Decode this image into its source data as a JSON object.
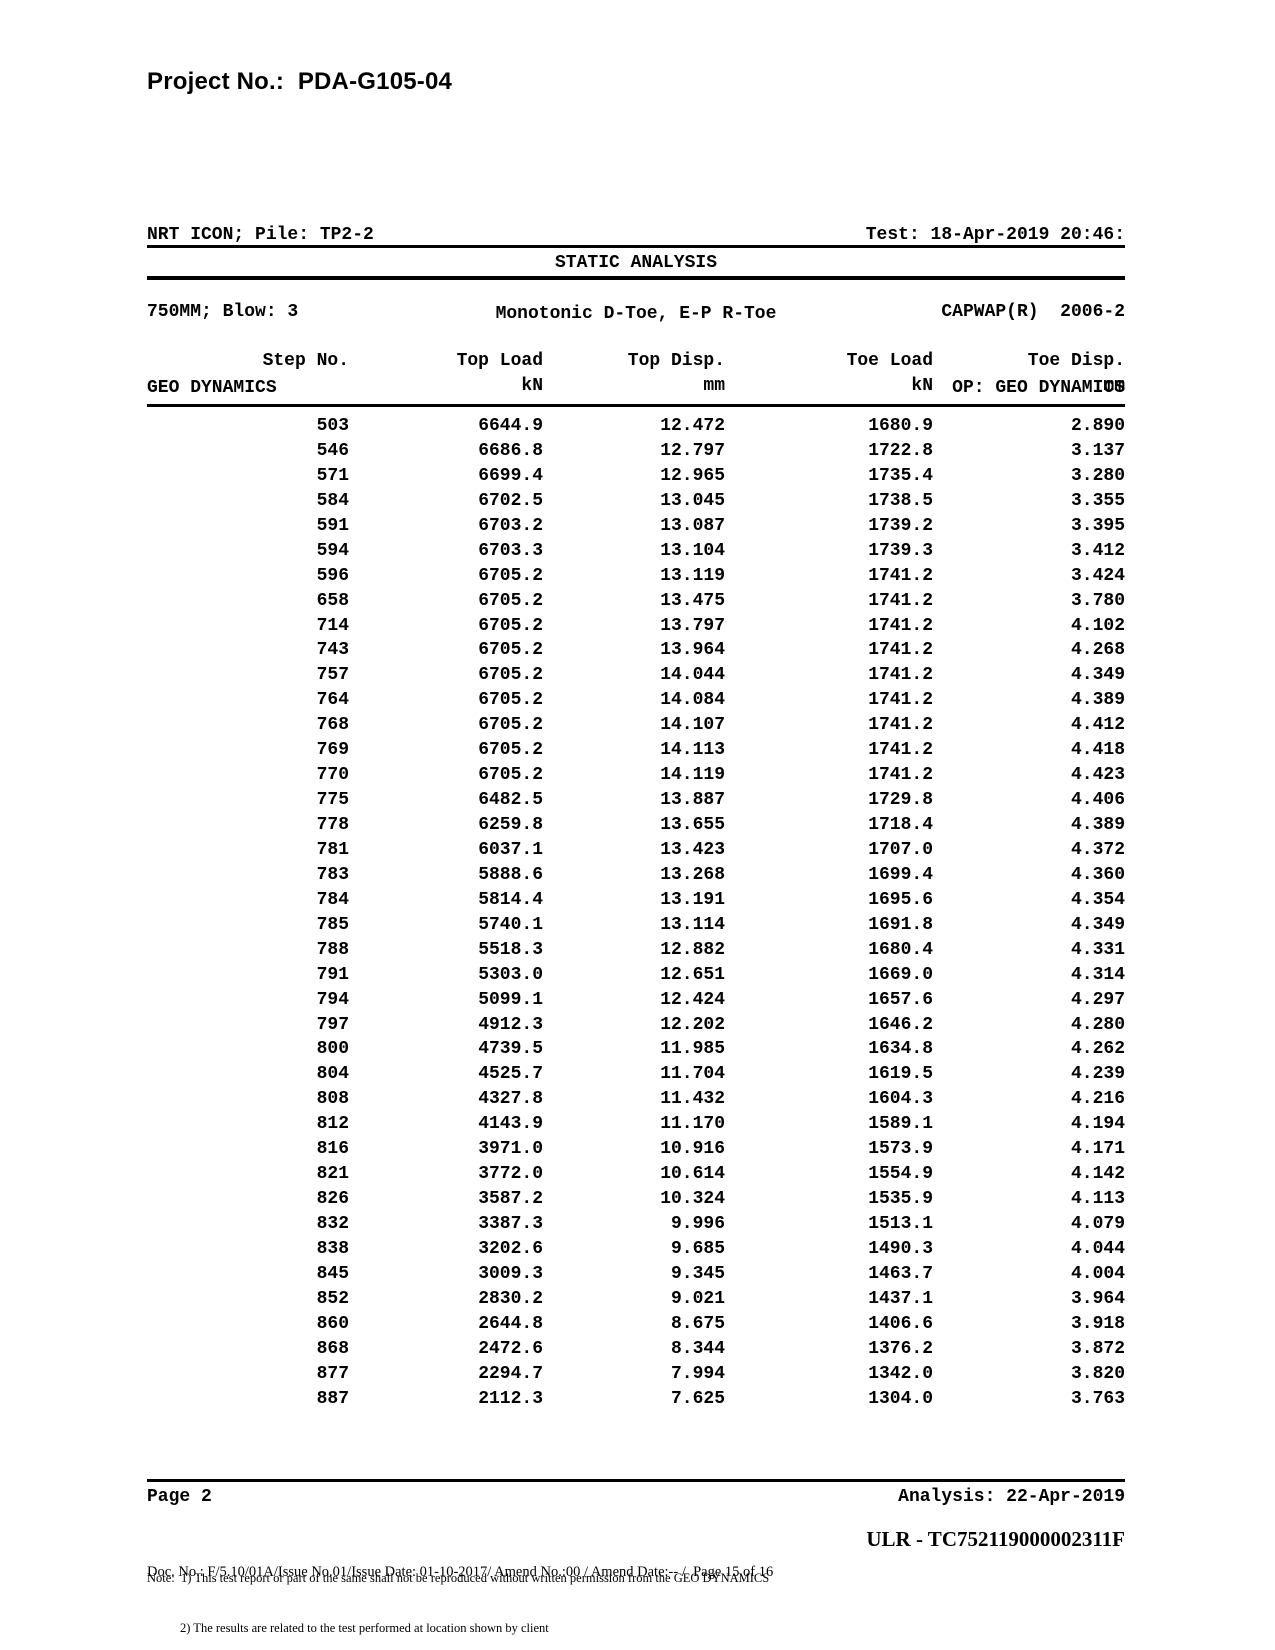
{
  "title": "Project No.:  PDA-G105-04",
  "header": {
    "left": [
      "NRT ICON; Pile: TP2-2",
      "750MM; Blow: 3",
      "GEO DYNAMICS"
    ],
    "right": [
      "Test: 18-Apr-2019 20:46:",
      "CAPWAP(R)  2006-2",
      "OP: GEO DYNAMICS"
    ]
  },
  "section_title": "STATIC ANALYSIS",
  "subtitle": "Monotonic D-Toe, E-P R-Toe",
  "table": {
    "columns": [
      "Step No.",
      "Top Load",
      "Top Disp.",
      "Toe Load",
      "Toe Disp."
    ],
    "units": [
      "",
      "kN",
      "mm",
      "kN",
      "mm"
    ],
    "rows": [
      [
        "503",
        "6644.9",
        "12.472",
        "1680.9",
        "2.890"
      ],
      [
        "546",
        "6686.8",
        "12.797",
        "1722.8",
        "3.137"
      ],
      [
        "571",
        "6699.4",
        "12.965",
        "1735.4",
        "3.280"
      ],
      [
        "584",
        "6702.5",
        "13.045",
        "1738.5",
        "3.355"
      ],
      [
        "591",
        "6703.2",
        "13.087",
        "1739.2",
        "3.395"
      ],
      [
        "594",
        "6703.3",
        "13.104",
        "1739.3",
        "3.412"
      ],
      [
        "596",
        "6705.2",
        "13.119",
        "1741.2",
        "3.424"
      ],
      [
        "658",
        "6705.2",
        "13.475",
        "1741.2",
        "3.780"
      ],
      [
        "714",
        "6705.2",
        "13.797",
        "1741.2",
        "4.102"
      ],
      [
        "743",
        "6705.2",
        "13.964",
        "1741.2",
        "4.268"
      ],
      [
        "757",
        "6705.2",
        "14.044",
        "1741.2",
        "4.349"
      ],
      [
        "764",
        "6705.2",
        "14.084",
        "1741.2",
        "4.389"
      ],
      [
        "768",
        "6705.2",
        "14.107",
        "1741.2",
        "4.412"
      ],
      [
        "769",
        "6705.2",
        "14.113",
        "1741.2",
        "4.418"
      ],
      [
        "770",
        "6705.2",
        "14.119",
        "1741.2",
        "4.423"
      ],
      [
        "775",
        "6482.5",
        "13.887",
        "1729.8",
        "4.406"
      ],
      [
        "778",
        "6259.8",
        "13.655",
        "1718.4",
        "4.389"
      ],
      [
        "781",
        "6037.1",
        "13.423",
        "1707.0",
        "4.372"
      ],
      [
        "783",
        "5888.6",
        "13.268",
        "1699.4",
        "4.360"
      ],
      [
        "784",
        "5814.4",
        "13.191",
        "1695.6",
        "4.354"
      ],
      [
        "785",
        "5740.1",
        "13.114",
        "1691.8",
        "4.349"
      ],
      [
        "788",
        "5518.3",
        "12.882",
        "1680.4",
        "4.331"
      ],
      [
        "791",
        "5303.0",
        "12.651",
        "1669.0",
        "4.314"
      ],
      [
        "794",
        "5099.1",
        "12.424",
        "1657.6",
        "4.297"
      ],
      [
        "797",
        "4912.3",
        "12.202",
        "1646.2",
        "4.280"
      ],
      [
        "800",
        "4739.5",
        "11.985",
        "1634.8",
        "4.262"
      ],
      [
        "804",
        "4525.7",
        "11.704",
        "1619.5",
        "4.239"
      ],
      [
        "808",
        "4327.8",
        "11.432",
        "1604.3",
        "4.216"
      ],
      [
        "812",
        "4143.9",
        "11.170",
        "1589.1",
        "4.194"
      ],
      [
        "816",
        "3971.0",
        "10.916",
        "1573.9",
        "4.171"
      ],
      [
        "821",
        "3772.0",
        "10.614",
        "1554.9",
        "4.142"
      ],
      [
        "826",
        "3587.2",
        "10.324",
        "1535.9",
        "4.113"
      ],
      [
        "832",
        "3387.3",
        "9.996",
        "1513.1",
        "4.079"
      ],
      [
        "838",
        "3202.6",
        "9.685",
        "1490.3",
        "4.044"
      ],
      [
        "845",
        "3009.3",
        "9.345",
        "1463.7",
        "4.004"
      ],
      [
        "852",
        "2830.2",
        "9.021",
        "1437.1",
        "3.964"
      ],
      [
        "860",
        "2644.8",
        "8.675",
        "1406.6",
        "3.918"
      ],
      [
        "868",
        "2472.6",
        "8.344",
        "1376.2",
        "3.872"
      ],
      [
        "877",
        "2294.7",
        "7.994",
        "1342.0",
        "3.820"
      ],
      [
        "887",
        "2112.3",
        "7.625",
        "1304.0",
        "3.763"
      ]
    ]
  },
  "footer": {
    "page_label": "Page 2",
    "analysis_label": "Analysis: 22-Apr-2019",
    "note_line1": "Note:  1) This test report or part of the same shall not be reproduced without written permission from the GEO DYNAMICS",
    "note_line2": "2) The results are related to the test performed at location shown by client",
    "ulr": "ULR - TC752119000002311F",
    "doc_line": "Doc. No.: F/5.10/01A/Issue No.01/Issue Date: 01-10-2017/ Amend No.:00 / Amend Date:-- /  Page 15 of 16"
  }
}
